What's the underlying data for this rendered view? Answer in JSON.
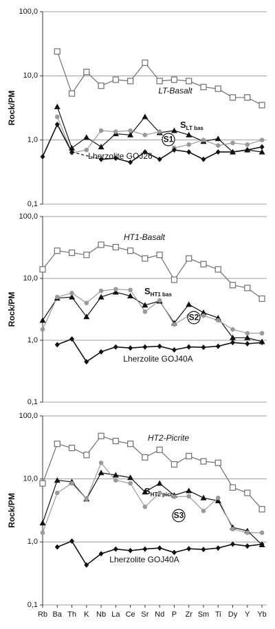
{
  "chart_data": [
    {
      "type": "line",
      "ylabel": "Rock/PM",
      "log_scale": true,
      "grid": true,
      "categories": [
        "Rb",
        "Ba",
        "Th",
        "K",
        "Nb",
        "La",
        "Ce",
        "Sr",
        "Nd",
        "P",
        "Zr",
        "Sm",
        "Ti",
        "Dy",
        "Y",
        "Yb"
      ],
      "ylim": [
        0.1,
        100
      ],
      "yticks": [
        {
          "value": 0.1,
          "label": "0,1"
        },
        {
          "value": 1,
          "label": "1,0"
        },
        {
          "value": 10,
          "label": "10,0"
        },
        {
          "value": 100,
          "label": "100,0"
        }
      ],
      "series": [
        {
          "name": "LT-Basalt",
          "marker": "square",
          "color": "#6e6e6e",
          "values": [
            null,
            24,
            5.3,
            11.5,
            7,
            8.7,
            8.3,
            16,
            8.3,
            8.7,
            8.3,
            6.7,
            6.3,
            4.6,
            4.6,
            3.5
          ]
        },
        {
          "name": {
            "text": "S",
            "sub": "LT bas"
          },
          "marker": "triangle",
          "color": "#111111",
          "values": [
            null,
            3.3,
            0.75,
            1.1,
            0.78,
            1.25,
            1.2,
            2.3,
            1.3,
            1.4,
            1.2,
            0.95,
            1.05,
            0.65,
            0.7,
            0.65
          ]
        },
        {
          "name": "S1",
          "marker": "circle",
          "color": "#9a9a9a",
          "values": [
            null,
            2.3,
            0.63,
            0.7,
            1.4,
            1.35,
            1.4,
            1.2,
            1.35,
            0.75,
            0.85,
            1.0,
            0.82,
            0.9,
            0.85,
            1.0
          ]
        },
        {
          "name": "Lherzolite GOJ26",
          "marker": "diamond",
          "color": "#111111",
          "gap_bridge": "dashed",
          "values": [
            0.55,
            1.75,
            0.65,
            null,
            0.5,
            0.52,
            0.45,
            0.65,
            0.5,
            0.7,
            0.65,
            0.5,
            0.65,
            0.65,
            0.7,
            0.78
          ]
        }
      ]
    },
    {
      "type": "line",
      "ylabel": "Rock/PM",
      "log_scale": true,
      "grid": true,
      "categories": [
        "Rb",
        "Ba",
        "Th",
        "K",
        "Nb",
        "La",
        "Ce",
        "Sr",
        "Nd",
        "P",
        "Zr",
        "Sm",
        "Ti",
        "Dy",
        "Y",
        "Yb"
      ],
      "ylim": [
        0.1,
        100
      ],
      "yticks": [
        {
          "value": 0.1,
          "label": "0,1"
        },
        {
          "value": 1,
          "label": "1,0"
        },
        {
          "value": 10,
          "label": "10,0"
        },
        {
          "value": 100,
          "label": "100,0"
        }
      ],
      "series": [
        {
          "name": "HT1-Basalt",
          "marker": "square",
          "color": "#6e6e6e",
          "values": [
            14,
            28,
            26,
            24,
            35,
            32,
            28,
            21,
            24,
            9.5,
            21,
            17,
            14,
            7.8,
            7,
            4.7
          ]
        },
        {
          "name": {
            "text": "S",
            "sub": "HT1 bas"
          },
          "marker": "triangle",
          "color": "#111111",
          "values": [
            2.1,
            4.8,
            5,
            2.4,
            5,
            6,
            5.2,
            3.7,
            4.3,
            1.9,
            3.8,
            2.8,
            2.3,
            1.1,
            1.1,
            0.95
          ]
        },
        {
          "name": "S2",
          "marker": "circle",
          "color": "#9a9a9a",
          "values": [
            1.5,
            5,
            5.8,
            4,
            6.3,
            6.7,
            6.5,
            2.9,
            4.4,
            1.8,
            2.5,
            2.5,
            2.1,
            1.5,
            1.3,
            1.3
          ]
        },
        {
          "name": "Lherzolite GOJ40A",
          "marker": "diamond",
          "color": "#111111",
          "values": [
            null,
            0.85,
            1.05,
            0.45,
            0.65,
            0.78,
            0.75,
            0.78,
            0.8,
            0.7,
            0.78,
            0.77,
            0.8,
            0.92,
            0.88,
            0.92
          ]
        }
      ]
    },
    {
      "type": "line",
      "ylabel": "Rock/PM",
      "log_scale": true,
      "grid": true,
      "categories": [
        "Rb",
        "Ba",
        "Th",
        "K",
        "Nb",
        "La",
        "Ce",
        "Sr",
        "Nd",
        "P",
        "Zr",
        "Sm",
        "Ti",
        "Dy",
        "Y",
        "Yb"
      ],
      "ylim": [
        0.1,
        100
      ],
      "yticks": [
        {
          "value": 0.1,
          "label": "0,1"
        },
        {
          "value": 1,
          "label": "1,0"
        },
        {
          "value": 10,
          "label": "10,0"
        },
        {
          "value": 100,
          "label": "100,0"
        }
      ],
      "series": [
        {
          "name": "HT2-Picrite",
          "marker": "square",
          "color": "#6e6e6e",
          "values": [
            8.5,
            36,
            31,
            24,
            48,
            40,
            36,
            22,
            29,
            17,
            23,
            19,
            18,
            7.3,
            6,
            3.3
          ]
        },
        {
          "name": {
            "text": "S",
            "sub": "HT2 picr"
          },
          "marker": "triangle",
          "color": "#111111",
          "values": [
            2,
            9.5,
            9,
            4.8,
            12.5,
            11.5,
            10.5,
            6.2,
            8.5,
            5.5,
            6.5,
            5,
            4.5,
            1.7,
            1.5,
            0.9
          ]
        },
        {
          "name": "S3",
          "marker": "circle",
          "color": "#9a9a9a",
          "values": [
            1.4,
            6,
            8.5,
            4.8,
            18,
            9.5,
            8.5,
            3.6,
            6,
            5.2,
            5.3,
            3.1,
            5,
            1.6,
            1.4,
            1.4
          ]
        },
        {
          "name": "Lherzolite GOJ40A",
          "marker": "diamond",
          "color": "#111111",
          "values": [
            null,
            0.83,
            1.03,
            0.43,
            0.65,
            0.77,
            0.73,
            0.77,
            0.8,
            0.68,
            0.78,
            0.76,
            0.8,
            0.92,
            0.86,
            0.92
          ]
        }
      ]
    }
  ]
}
